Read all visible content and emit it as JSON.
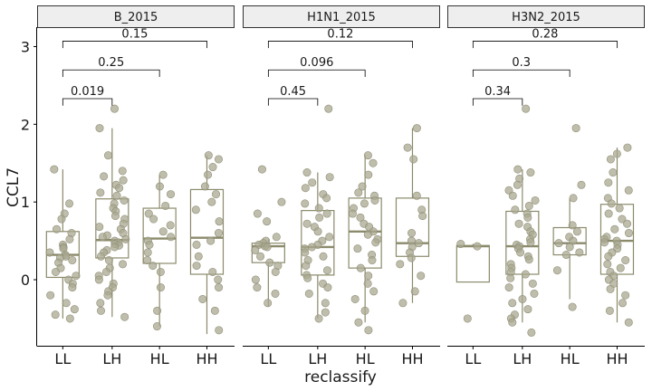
{
  "chart_data": {
    "type": "boxplot",
    "xlabel": "reclassify",
    "ylabel": "CCL7",
    "ylim": [
      -0.85,
      3.25
    ],
    "yticks": [
      0,
      1,
      2,
      3
    ],
    "categories": [
      "LL",
      "LH",
      "HL",
      "HH"
    ],
    "colors": {
      "point": "#a9a890",
      "point_stroke": "#8f8e76",
      "box": "#8b8a6b",
      "median": "#8b8a6b",
      "strip_fill": "#eeeeee",
      "strip_border": "#333333",
      "axis": "#000000",
      "bracket": "#000000"
    },
    "panels": [
      {
        "name": "B_2015",
        "boxes": [
          {
            "cat": "LL",
            "whisker_low": -0.5,
            "q1": 0.03,
            "median": 0.32,
            "q3": 0.62,
            "whisker_high": 1.42
          },
          {
            "cat": "LH",
            "whisker_low": -0.48,
            "q1": 0.28,
            "median": 0.51,
            "q3": 1.04,
            "whisker_high": 1.95
          },
          {
            "cat": "HL",
            "whisker_low": -0.6,
            "q1": 0.21,
            "median": 0.53,
            "q3": 0.92,
            "whisker_high": 1.35
          },
          {
            "cat": "HH",
            "whisker_low": -0.7,
            "q1": 0.07,
            "median": 0.54,
            "q3": 1.16,
            "whisker_high": 1.6
          }
        ],
        "points": {
          "LL": [
            1.42,
            0.98,
            0.85,
            0.78,
            0.65,
            0.6,
            0.52,
            0.45,
            0.42,
            0.4,
            0.35,
            0.32,
            0.3,
            0.28,
            0.25,
            0.22,
            0.15,
            0.1,
            0.05,
            0.0,
            -0.05,
            -0.1,
            -0.2,
            -0.3,
            -0.38,
            -0.45,
            -0.5
          ],
          "LH": [
            2.2,
            1.95,
            1.6,
            1.4,
            1.33,
            1.28,
            1.22,
            1.18,
            1.12,
            1.08,
            1.02,
            0.98,
            0.92,
            0.88,
            0.82,
            0.78,
            0.72,
            0.68,
            0.65,
            0.6,
            0.57,
            0.55,
            0.52,
            0.5,
            0.48,
            0.46,
            0.44,
            0.42,
            0.38,
            0.35,
            0.3,
            0.25,
            0.2,
            0.15,
            0.1,
            0.05,
            0.0,
            -0.05,
            -0.1,
            -0.15,
            -0.2,
            -0.3,
            -0.4,
            -0.48
          ],
          "HL": [
            1.35,
            1.2,
            1.1,
            0.95,
            0.85,
            0.78,
            0.7,
            0.62,
            0.55,
            0.5,
            0.45,
            0.35,
            0.25,
            0.18,
            0.1,
            -0.1,
            -0.4,
            -0.6
          ],
          "HH": [
            1.6,
            1.55,
            1.45,
            1.35,
            1.2,
            1.1,
            1.0,
            0.9,
            0.75,
            0.6,
            0.5,
            0.45,
            0.3,
            0.18,
            0.1,
            0.0,
            -0.1,
            -0.25,
            -0.4,
            -0.65
          ]
        },
        "comparisons": [
          {
            "from": "LL",
            "to": "LH",
            "label": "0.019"
          },
          {
            "from": "LL",
            "to": "HL",
            "label": "0.25"
          },
          {
            "from": "LL",
            "to": "HH",
            "label": "0.15"
          }
        ]
      },
      {
        "name": "H1N1_2015",
        "boxes": [
          {
            "cat": "LL",
            "whisker_low": -0.35,
            "q1": 0.22,
            "median": 0.43,
            "q3": 0.47,
            "whisker_high": 0.52
          },
          {
            "cat": "LH",
            "whisker_low": -0.5,
            "q1": 0.06,
            "median": 0.42,
            "q3": 0.89,
            "whisker_high": 1.38
          },
          {
            "cat": "HL",
            "whisker_low": -0.55,
            "q1": 0.15,
            "median": 0.62,
            "q3": 1.05,
            "whisker_high": 1.6
          },
          {
            "cat": "HH",
            "whisker_low": -0.3,
            "q1": 0.3,
            "median": 0.47,
            "q3": 1.05,
            "whisker_high": 1.95
          }
        ],
        "points": {
          "LL": [
            1.42,
            1.0,
            0.85,
            0.75,
            0.55,
            0.5,
            0.47,
            0.45,
            0.43,
            0.42,
            0.38,
            0.3,
            0.22,
            0.18,
            0.1,
            0.0,
            -0.1,
            -0.18,
            -0.3
          ],
          "LH": [
            2.2,
            1.38,
            1.32,
            1.25,
            1.18,
            1.1,
            1.05,
            0.98,
            0.92,
            0.85,
            0.8,
            0.72,
            0.68,
            0.62,
            0.55,
            0.5,
            0.45,
            0.42,
            0.4,
            0.35,
            0.3,
            0.25,
            0.18,
            0.12,
            0.06,
            0.02,
            -0.05,
            -0.1,
            -0.18,
            -0.3,
            -0.42,
            -0.5
          ],
          "HL": [
            1.6,
            1.5,
            1.35,
            1.2,
            1.12,
            1.08,
            1.02,
            0.98,
            0.92,
            0.85,
            0.8,
            0.72,
            0.68,
            0.62,
            0.58,
            0.52,
            0.48,
            0.4,
            0.32,
            0.25,
            0.15,
            0.05,
            -0.05,
            -0.15,
            -0.25,
            -0.4,
            -0.55,
            -0.65
          ],
          "HH": [
            1.95,
            1.7,
            1.55,
            1.08,
            0.9,
            0.82,
            0.6,
            0.5,
            0.47,
            0.42,
            0.35,
            0.28,
            0.2,
            0.05,
            -0.15,
            -0.3
          ]
        },
        "comparisons": [
          {
            "from": "LL",
            "to": "LH",
            "label": "0.45"
          },
          {
            "from": "LL",
            "to": "HL",
            "label": "0.096"
          },
          {
            "from": "LL",
            "to": "HH",
            "label": "0.12"
          }
        ]
      },
      {
        "name": "H3N2_2015",
        "boxes": [
          {
            "cat": "LL",
            "whisker_low": -0.03,
            "q1": -0.03,
            "median": 0.43,
            "q3": 0.44,
            "whisker_high": 0.46
          },
          {
            "cat": "LH",
            "whisker_low": -0.55,
            "q1": 0.07,
            "median": 0.43,
            "q3": 0.88,
            "whisker_high": 1.42
          },
          {
            "cat": "HL",
            "whisker_low": -0.25,
            "q1": 0.32,
            "median": 0.47,
            "q3": 0.67,
            "whisker_high": 1.05
          },
          {
            "cat": "HH",
            "whisker_low": -0.55,
            "q1": 0.07,
            "median": 0.5,
            "q3": 0.97,
            "whisker_high": 1.7
          }
        ],
        "points": {
          "LL": [
            0.46,
            0.43,
            -0.5
          ],
          "LH": [
            2.2,
            1.42,
            1.38,
            1.3,
            1.22,
            1.15,
            1.08,
            1.02,
            0.95,
            0.9,
            0.85,
            0.8,
            0.72,
            0.68,
            0.62,
            0.58,
            0.52,
            0.48,
            0.45,
            0.43,
            0.4,
            0.35,
            0.3,
            0.26,
            0.2,
            0.15,
            0.1,
            0.07,
            0.02,
            -0.05,
            -0.1,
            -0.18,
            -0.25,
            -0.3,
            -0.38,
            -0.45,
            -0.5,
            -0.55,
            -0.68
          ],
          "HL": [
            1.95,
            1.22,
            1.05,
            0.7,
            0.62,
            0.55,
            0.5,
            0.47,
            0.42,
            0.35,
            0.32,
            0.12,
            -0.35
          ],
          "HH": [
            1.7,
            1.62,
            1.55,
            1.38,
            1.25,
            1.15,
            1.05,
            0.98,
            0.92,
            0.85,
            0.78,
            0.72,
            0.65,
            0.6,
            0.55,
            0.52,
            0.5,
            0.48,
            0.45,
            0.4,
            0.35,
            0.3,
            0.25,
            0.2,
            0.15,
            0.1,
            0.05,
            0.0,
            -0.05,
            -0.12,
            -0.2,
            -0.3,
            -0.4,
            -0.55
          ]
        },
        "comparisons": [
          {
            "from": "LL",
            "to": "LH",
            "label": "0.34"
          },
          {
            "from": "LL",
            "to": "HL",
            "label": "0.3"
          },
          {
            "from": "LL",
            "to": "HH",
            "label": "0.28"
          }
        ]
      }
    ]
  }
}
